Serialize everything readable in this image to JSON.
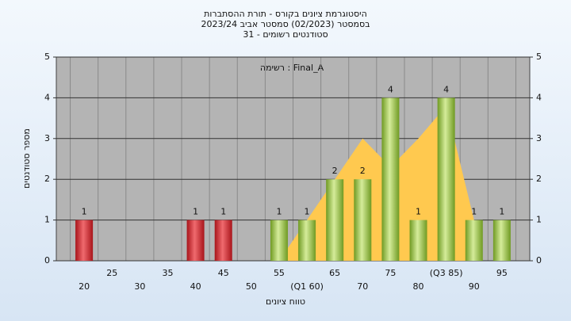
{
  "chart_data": {
    "type": "bar",
    "title": "היסטוגרמת ציונים בקורס - תורת ההסתברות",
    "subtitle": "בסמסטר  (02/2023)  סמסטר אביב 2023/24",
    "subtitle2": "סטודנטים רשומים - 31",
    "annotation": "רשימה : Final_A",
    "x_label": "טווח ציונים",
    "y_label": "מספר סטודנטים",
    "categories": [
      "20",
      "25",
      "30",
      "35",
      "40",
      "45",
      "50",
      "55",
      "(Q1 60)",
      "65",
      "70",
      "75",
      "80",
      "(Q3 85)",
      "90",
      "95"
    ],
    "values": [
      1,
      0,
      0,
      0,
      1,
      1,
      0,
      1,
      1,
      2,
      2,
      4,
      1,
      4,
      1,
      1
    ],
    "colors": [
      "#d8262c",
      "#d8262c",
      "#d8262c",
      "#d8262c",
      "#d8262c",
      "#d8262c",
      "#d8262c",
      "#8fbd3a",
      "#8fbd3a",
      "#8fbd3a",
      "#8fbd3a",
      "#8fbd3a",
      "#8fbd3a",
      "#8fbd3a",
      "#8fbd3a",
      "#8fbd3a"
    ],
    "area": {
      "color": "#ffc94f",
      "values": [
        null,
        null,
        null,
        null,
        null,
        null,
        null,
        0,
        1,
        2,
        3,
        2.3,
        3,
        3.8,
        1,
        null
      ]
    },
    "ylim": [
      0,
      5
    ],
    "yticks": [
      0,
      1,
      2,
      3,
      4,
      5
    ],
    "grid": true
  }
}
